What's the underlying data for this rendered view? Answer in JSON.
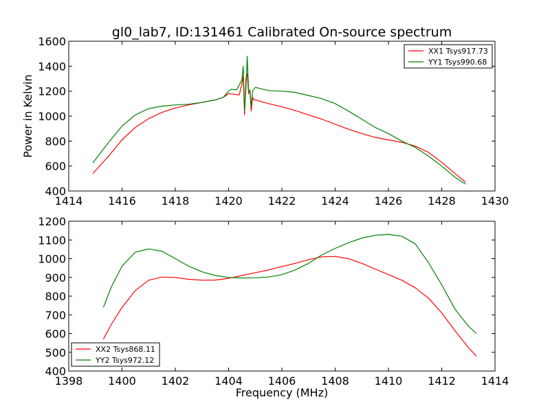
{
  "figure": {
    "title": "gl0_lab7, ID:131461 Calibrated On-source spectrum",
    "xlabel": "Frequency (MHz)"
  },
  "colors": {
    "red": "#ff0000",
    "green": "#008000"
  },
  "chart_data": [
    {
      "type": "line",
      "name": "top-panel",
      "title": "gl0_lab7, ID:131461 Calibrated On-source spectrum",
      "xlabel": "",
      "ylabel": "Power in Kelvin",
      "xlim": [
        1414,
        1430
      ],
      "ylim": [
        400,
        1600
      ],
      "xticks": [
        1414,
        1416,
        1418,
        1420,
        1422,
        1424,
        1426,
        1428,
        1430
      ],
      "yticks": [
        400,
        600,
        800,
        1000,
        1200,
        1400,
        1600
      ],
      "legend_position": "top-right",
      "series": [
        {
          "name": "XX1 Tsys917.73",
          "color": "#ff0000",
          "x": [
            1414.9,
            1415.5,
            1416.0,
            1416.5,
            1417.0,
            1417.5,
            1418.0,
            1418.5,
            1419.0,
            1419.5,
            1419.8,
            1420.0,
            1420.2,
            1420.4,
            1420.5,
            1420.55,
            1420.6,
            1420.65,
            1420.7,
            1420.75,
            1420.8,
            1420.85,
            1420.9,
            1420.95,
            1421.0,
            1421.5,
            1422.0,
            1422.5,
            1423.0,
            1423.5,
            1424.0,
            1424.5,
            1425.0,
            1425.5,
            1426.0,
            1426.5,
            1427.0,
            1427.5,
            1428.0,
            1428.5,
            1428.9
          ],
          "values": [
            540,
            680,
            810,
            910,
            980,
            1030,
            1065,
            1090,
            1110,
            1130,
            1150,
            1180,
            1175,
            1170,
            1260,
            1320,
            1010,
            1300,
            1340,
            1180,
            1200,
            1040,
            1150,
            1130,
            1130,
            1100,
            1075,
            1045,
            1010,
            975,
            935,
            895,
            860,
            830,
            810,
            790,
            760,
            710,
            630,
            540,
            470
          ]
        },
        {
          "name": "YY1 Tsys990.68",
          "color": "#008000",
          "x": [
            1414.9,
            1415.5,
            1416.0,
            1416.5,
            1417.0,
            1417.5,
            1418.0,
            1418.5,
            1419.0,
            1419.5,
            1419.8,
            1420.0,
            1420.1,
            1420.3,
            1420.5,
            1420.55,
            1420.6,
            1420.65,
            1420.7,
            1420.75,
            1420.8,
            1420.85,
            1420.9,
            1421.0,
            1421.5,
            1422.0,
            1422.5,
            1423.0,
            1423.5,
            1424.0,
            1424.5,
            1425.0,
            1425.5,
            1426.0,
            1426.5,
            1427.0,
            1427.5,
            1428.0,
            1428.5,
            1428.9
          ],
          "values": [
            625,
            790,
            920,
            1010,
            1060,
            1080,
            1090,
            1095,
            1110,
            1130,
            1150,
            1200,
            1215,
            1210,
            1290,
            1400,
            1040,
            1220,
            1480,
            1200,
            1210,
            1080,
            1200,
            1230,
            1205,
            1200,
            1190,
            1165,
            1140,
            1100,
            1040,
            975,
            910,
            860,
            800,
            750,
            680,
            600,
            510,
            455
          ]
        }
      ]
    },
    {
      "type": "line",
      "name": "bottom-panel",
      "title": "",
      "xlabel": "Frequency (MHz)",
      "ylabel": "",
      "xlim": [
        1398,
        1414
      ],
      "ylim": [
        400,
        1200
      ],
      "xticks": [
        1398,
        1400,
        1402,
        1404,
        1406,
        1408,
        1410,
        1412,
        1414
      ],
      "yticks": [
        400,
        500,
        600,
        700,
        800,
        900,
        1000,
        1100,
        1200
      ],
      "legend_position": "bottom-left",
      "series": [
        {
          "name": "XX2 Tsys868.11",
          "color": "#ff0000",
          "x": [
            1399.3,
            1399.6,
            1400.0,
            1400.5,
            1401.0,
            1401.5,
            1402.0,
            1402.5,
            1403.0,
            1403.5,
            1404.0,
            1404.5,
            1405.0,
            1405.5,
            1406.0,
            1406.5,
            1407.0,
            1407.5,
            1408.0,
            1408.5,
            1409.0,
            1409.5,
            1410.0,
            1410.5,
            1411.0,
            1411.5,
            1412.0,
            1412.5,
            1413.0,
            1413.3
          ],
          "values": [
            570,
            650,
            740,
            830,
            885,
            902,
            900,
            890,
            885,
            886,
            895,
            910,
            925,
            940,
            958,
            975,
            995,
            1010,
            1012,
            1000,
            975,
            945,
            915,
            885,
            845,
            790,
            710,
            615,
            525,
            480
          ]
        },
        {
          "name": "YY2 Tsys972.12",
          "color": "#008000",
          "x": [
            1399.3,
            1399.6,
            1400.0,
            1400.5,
            1401.0,
            1401.5,
            1402.0,
            1402.5,
            1403.0,
            1403.5,
            1404.0,
            1404.5,
            1405.0,
            1405.5,
            1406.0,
            1406.5,
            1407.0,
            1407.5,
            1408.0,
            1408.5,
            1409.0,
            1409.5,
            1410.0,
            1410.5,
            1411.0,
            1411.5,
            1412.0,
            1412.5,
            1413.0,
            1413.3
          ],
          "values": [
            740,
            850,
            960,
            1035,
            1052,
            1040,
            1000,
            960,
            930,
            910,
            900,
            897,
            898,
            902,
            915,
            940,
            975,
            1020,
            1055,
            1085,
            1110,
            1125,
            1130,
            1120,
            1080,
            980,
            860,
            730,
            640,
            600
          ]
        }
      ]
    }
  ]
}
